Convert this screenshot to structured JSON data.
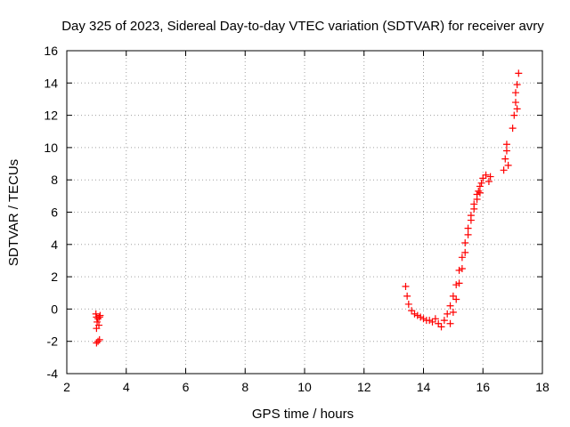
{
  "chart_data": {
    "type": "scatter",
    "title": "Day 325 of 2023, Sidereal Day-to-day VTEC variation (SDTVAR) for receiver avry",
    "xlabel": "GPS time / hours",
    "ylabel": "SDTVAR / TECUs",
    "xlim": [
      2,
      18
    ],
    "ylim": [
      -4,
      16
    ],
    "xticks": [
      2,
      4,
      6,
      8,
      10,
      12,
      14,
      16,
      18
    ],
    "yticks": [
      -4,
      -2,
      0,
      2,
      4,
      6,
      8,
      10,
      12,
      14,
      16
    ],
    "grid": true,
    "marker": "+",
    "series": [
      {
        "name": "SDTVAR",
        "color": "#ff0000",
        "points": [
          [
            2.98,
            -0.3
          ],
          [
            3.0,
            -0.5
          ],
          [
            3.02,
            -0.8
          ],
          [
            3.05,
            -0.6
          ],
          [
            3.08,
            -1.0
          ],
          [
            3.1,
            -0.5
          ],
          [
            3.0,
            -1.2
          ],
          [
            3.05,
            -2.0
          ],
          [
            3.1,
            -1.9
          ],
          [
            3.0,
            -2.1
          ],
          [
            3.12,
            -0.4
          ],
          [
            13.4,
            1.4
          ],
          [
            13.45,
            0.8
          ],
          [
            13.5,
            0.3
          ],
          [
            13.6,
            -0.1
          ],
          [
            13.7,
            -0.3
          ],
          [
            13.8,
            -0.4
          ],
          [
            13.9,
            -0.5
          ],
          [
            14.0,
            -0.6
          ],
          [
            14.1,
            -0.7
          ],
          [
            14.2,
            -0.7
          ],
          [
            14.3,
            -0.8
          ],
          [
            14.4,
            -0.6
          ],
          [
            14.5,
            -0.9
          ],
          [
            14.6,
            -1.1
          ],
          [
            14.7,
            -0.7
          ],
          [
            14.8,
            -0.3
          ],
          [
            14.9,
            0.2
          ],
          [
            15.0,
            0.8
          ],
          [
            15.1,
            1.5
          ],
          [
            15.2,
            2.4
          ],
          [
            15.3,
            3.2
          ],
          [
            15.4,
            4.1
          ],
          [
            15.5,
            5.0
          ],
          [
            15.6,
            5.8
          ],
          [
            15.7,
            6.5
          ],
          [
            15.8,
            7.1
          ],
          [
            15.9,
            7.6
          ],
          [
            16.0,
            8.1
          ],
          [
            16.1,
            8.3
          ],
          [
            16.2,
            7.9
          ],
          [
            16.25,
            8.2
          ],
          [
            15.95,
            7.8
          ],
          [
            15.85,
            7.3
          ],
          [
            14.9,
            -0.9
          ],
          [
            15.0,
            -0.2
          ],
          [
            15.1,
            0.6
          ],
          [
            15.2,
            1.6
          ],
          [
            15.3,
            2.5
          ],
          [
            15.4,
            3.5
          ],
          [
            15.5,
            4.6
          ],
          [
            15.6,
            5.5
          ],
          [
            15.7,
            6.2
          ],
          [
            15.8,
            6.8
          ],
          [
            15.9,
            7.2
          ],
          [
            16.7,
            8.6
          ],
          [
            16.75,
            9.3
          ],
          [
            16.8,
            9.8
          ],
          [
            16.8,
            10.2
          ],
          [
            16.85,
            8.9
          ],
          [
            17.0,
            11.2
          ],
          [
            17.05,
            12.0
          ],
          [
            17.1,
            12.8
          ],
          [
            17.1,
            13.4
          ],
          [
            17.15,
            13.9
          ],
          [
            17.2,
            14.6
          ],
          [
            17.15,
            12.4
          ]
        ]
      }
    ]
  }
}
